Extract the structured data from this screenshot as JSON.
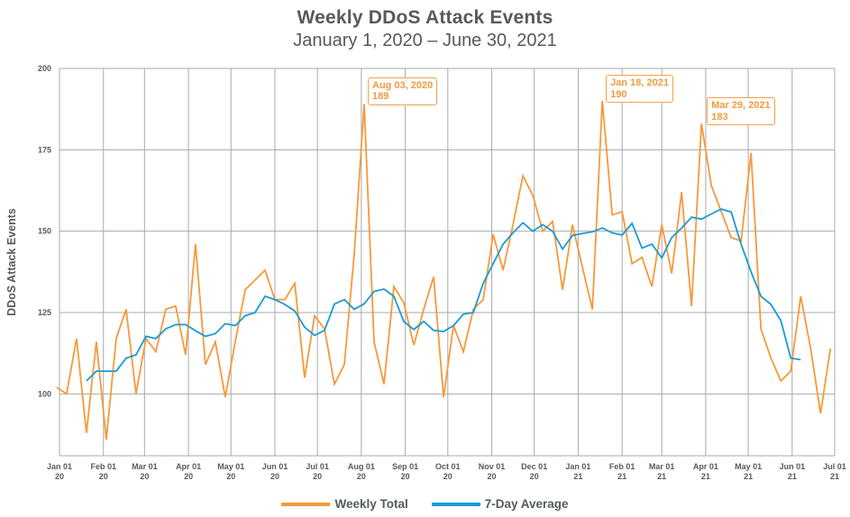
{
  "chart_data": {
    "type": "line",
    "title": "Weekly DDoS Attack Events",
    "subtitle": "January 1, 2020 – June 30, 2021",
    "xlabel": "",
    "ylabel": "DDoS Attack Events",
    "ylim": [
      81,
      200
    ],
    "yticks": [
      100,
      125,
      150,
      175,
      200
    ],
    "grid": true,
    "x_start_week": "2019-12-30",
    "x_interval": "weekly",
    "xlim": [
      "2020-01-01",
      "2021-07-01"
    ],
    "xticks": [
      {
        "date": "2020-01-01",
        "line1": "Jan 01",
        "line2": "20"
      },
      {
        "date": "2020-02-01",
        "line1": "Feb 01",
        "line2": "20"
      },
      {
        "date": "2020-03-01",
        "line1": "Mar 01",
        "line2": "20"
      },
      {
        "date": "2020-04-01",
        "line1": "Apr 01",
        "line2": "20"
      },
      {
        "date": "2020-05-01",
        "line1": "May 01",
        "line2": "20"
      },
      {
        "date": "2020-06-01",
        "line1": "Jun 01",
        "line2": "20"
      },
      {
        "date": "2020-07-01",
        "line1": "Jul 01",
        "line2": "20"
      },
      {
        "date": "2020-08-01",
        "line1": "Aug 01",
        "line2": "20"
      },
      {
        "date": "2020-09-01",
        "line1": "Sep 01",
        "line2": "20"
      },
      {
        "date": "2020-10-01",
        "line1": "Oct 01",
        "line2": "20"
      },
      {
        "date": "2020-11-01",
        "line1": "Nov 01",
        "line2": "20"
      },
      {
        "date": "2020-12-01",
        "line1": "Dec 01",
        "line2": "20"
      },
      {
        "date": "2021-01-01",
        "line1": "Jan 01",
        "line2": "21"
      },
      {
        "date": "2021-02-01",
        "line1": "Feb 01",
        "line2": "21"
      },
      {
        "date": "2021-03-01",
        "line1": "Mar 01",
        "line2": "21"
      },
      {
        "date": "2021-04-01",
        "line1": "Apr 01",
        "line2": "21"
      },
      {
        "date": "2021-05-01",
        "line1": "May 01",
        "line2": "21"
      },
      {
        "date": "2021-06-01",
        "line1": "Jun 01",
        "line2": "21"
      },
      {
        "date": "2021-07-01",
        "line1": "Jul 01",
        "line2": "21"
      }
    ],
    "series": [
      {
        "name": "Weekly Total",
        "color": "#f7993a",
        "start_week_index": 0,
        "values": [
          102,
          100,
          117,
          88,
          116,
          86,
          117,
          126,
          100,
          117,
          113,
          126,
          127,
          112,
          146,
          109,
          116,
          99,
          116,
          132,
          135,
          138,
          129,
          129,
          134,
          105,
          124,
          120,
          103,
          109,
          143,
          189,
          116,
          103,
          133,
          128,
          115,
          126,
          136,
          99,
          121,
          113,
          126,
          129,
          149,
          138,
          152,
          167,
          161,
          150,
          153,
          132,
          152,
          139,
          126,
          190,
          155,
          156,
          140,
          142,
          133,
          152,
          137,
          162,
          127,
          183,
          164,
          156,
          148,
          147,
          174,
          120,
          111,
          104,
          107,
          130,
          114,
          94,
          114
        ]
      },
      {
        "name": "7-Day Average",
        "color": "#1a9ad6",
        "start_week_index": 3,
        "values": [
          104,
          107,
          107,
          107,
          111,
          112,
          117.7,
          117,
          120,
          121.3,
          121.3,
          119.4,
          117.7,
          118.5,
          121.6,
          121,
          124,
          125,
          130,
          129,
          127.5,
          125.5,
          120.5,
          118,
          119.5,
          127.6,
          129,
          126,
          127.7,
          131.5,
          132.2,
          130,
          122.2,
          119.8,
          122.3,
          119.5,
          119.2,
          121,
          124.5,
          125,
          134,
          140,
          146,
          149.5,
          152.6,
          150,
          152,
          150,
          144.5,
          148.7,
          149.3,
          149.8,
          151,
          149.5,
          148.8,
          152.4,
          144.8,
          146,
          141.8,
          148,
          151,
          154.3,
          153.7,
          155.3,
          156.8,
          155.9,
          146,
          137.5,
          130,
          127.5,
          122.5,
          111,
          110.5
        ]
      }
    ],
    "annotations": [
      {
        "date": "Aug 03, 2020",
        "value": "189",
        "week_index": 31
      },
      {
        "date": "Jan 18, 2021",
        "value": "190",
        "week_index": 55
      },
      {
        "date": "Mar 29, 2021",
        "value": "183",
        "week_index": 65
      }
    ],
    "legend": {
      "placement": "bottom-center",
      "items": [
        "Weekly Total",
        "7-Day Average"
      ]
    }
  },
  "colors": {
    "weekly": "#f7993a",
    "average": "#1a9ad6",
    "grid": "#a9a9a9",
    "text": "#555a60"
  }
}
